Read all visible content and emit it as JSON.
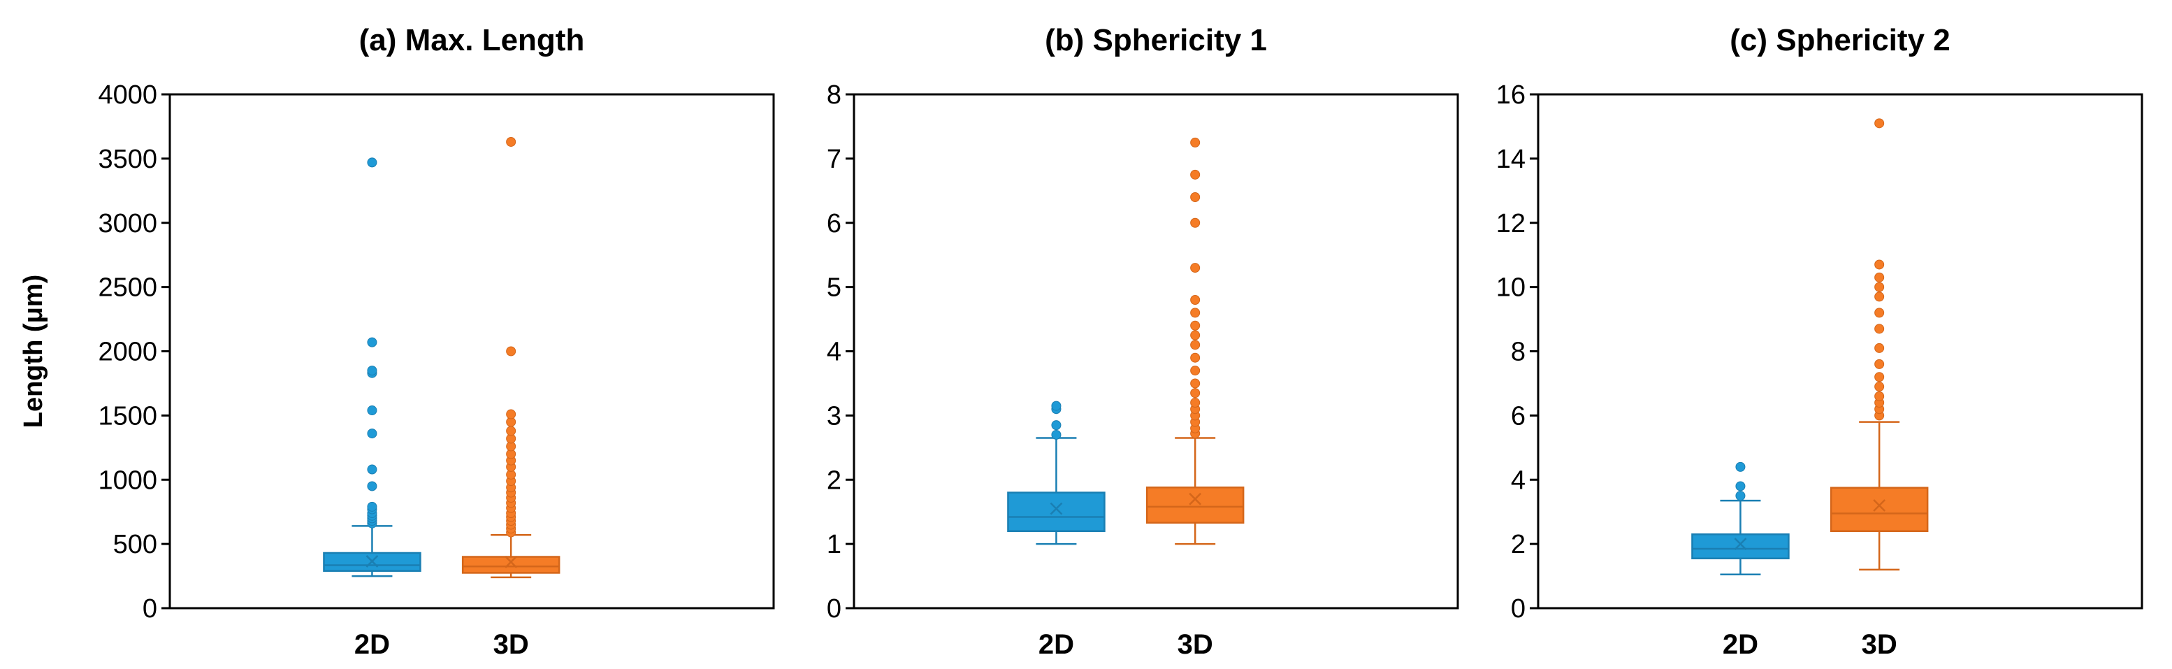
{
  "chart_data": [
    {
      "type": "box",
      "title": "(a) Max. Length",
      "ylabel": "Length (μm)",
      "ylim": [
        0,
        4000
      ],
      "yticks": [
        0,
        500,
        1000,
        1500,
        2000,
        2500,
        3000,
        3500,
        4000
      ],
      "categories": [
        "2D",
        "3D"
      ],
      "series": [
        {
          "name": "2D",
          "color": "#1F9AD6",
          "edge": "#1A7FB3",
          "whisker_low": 250,
          "q1": 290,
          "median": 335,
          "q3": 430,
          "whisker_high": 640,
          "mean": 365,
          "outliers": [
            660,
            680,
            700,
            720,
            740,
            770,
            790,
            950,
            1080,
            1360,
            1540,
            1830,
            1850,
            2070,
            3470
          ]
        },
        {
          "name": "3D",
          "color": "#F57C26",
          "edge": "#D4661A",
          "whisker_low": 240,
          "q1": 275,
          "median": 325,
          "q3": 400,
          "whisker_high": 570,
          "mean": 360,
          "outliers": [
            590,
            620,
            650,
            680,
            710,
            740,
            780,
            820,
            860,
            900,
            940,
            990,
            1040,
            1100,
            1150,
            1200,
            1260,
            1320,
            1380,
            1450,
            1510,
            2000,
            3630
          ]
        }
      ]
    },
    {
      "type": "box",
      "title": "(b) Sphericity 1",
      "ylabel": "",
      "ylim": [
        0,
        8
      ],
      "yticks": [
        0,
        1,
        2,
        3,
        4,
        5,
        6,
        7,
        8
      ],
      "categories": [
        "2D",
        "3D"
      ],
      "series": [
        {
          "name": "2D",
          "color": "#1F9AD6",
          "edge": "#1A7FB3",
          "whisker_low": 1.0,
          "q1": 1.2,
          "median": 1.42,
          "q3": 1.8,
          "whisker_high": 2.65,
          "mean": 1.55,
          "outliers": [
            2.7,
            2.85,
            3.1,
            3.15
          ]
        },
        {
          "name": "3D",
          "color": "#F57C26",
          "edge": "#D4661A",
          "whisker_low": 1.0,
          "q1": 1.33,
          "median": 1.58,
          "q3": 1.88,
          "whisker_high": 2.65,
          "mean": 1.7,
          "outliers": [
            2.72,
            2.8,
            2.9,
            3.0,
            3.1,
            3.2,
            3.35,
            3.5,
            3.7,
            3.9,
            4.1,
            4.25,
            4.4,
            4.6,
            4.8,
            5.3,
            6.0,
            6.4,
            6.75,
            7.25
          ]
        }
      ]
    },
    {
      "type": "box",
      "title": "(c) Sphericity 2",
      "ylabel": "",
      "ylim": [
        0,
        16
      ],
      "yticks": [
        0,
        2,
        4,
        6,
        8,
        10,
        12,
        14,
        16
      ],
      "categories": [
        "2D",
        "3D"
      ],
      "series": [
        {
          "name": "2D",
          "color": "#1F9AD6",
          "edge": "#1A7FB3",
          "whisker_low": 1.05,
          "q1": 1.55,
          "median": 1.85,
          "q3": 2.3,
          "whisker_high": 3.35,
          "mean": 2.0,
          "outliers": [
            3.5,
            3.8,
            4.4
          ]
        },
        {
          "name": "3D",
          "color": "#F57C26",
          "edge": "#D4661A",
          "whisker_low": 1.2,
          "q1": 2.4,
          "median": 2.95,
          "q3": 3.75,
          "whisker_high": 5.8,
          "mean": 3.2,
          "outliers": [
            6.0,
            6.2,
            6.4,
            6.6,
            6.9,
            7.2,
            7.6,
            8.1,
            8.7,
            9.2,
            9.7,
            10.0,
            10.3,
            10.7,
            15.1
          ]
        }
      ]
    }
  ]
}
